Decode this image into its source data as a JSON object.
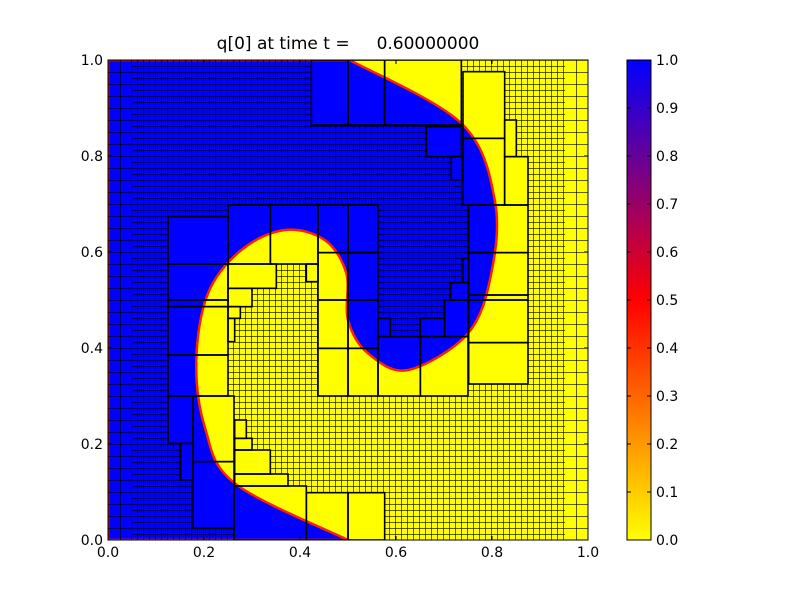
{
  "chart_data": {
    "type": "heatmap",
    "title": "q[0] at time t =     0.60000000",
    "xlabel": "",
    "ylabel": "",
    "xlim": [
      0.0,
      1.0
    ],
    "ylim": [
      0.0,
      1.0
    ],
    "x_ticks": [
      "0.0",
      "0.2",
      "0.4",
      "0.6",
      "0.8",
      "1.0"
    ],
    "y_ticks": [
      "0.0",
      "0.2",
      "0.4",
      "0.6",
      "0.8",
      "1.0"
    ],
    "colorbar": {
      "range": [
        0.0,
        1.0
      ],
      "ticks": [
        "0.0",
        "0.1",
        "0.2",
        "0.3",
        "0.4",
        "0.5",
        "0.6",
        "0.7",
        "0.8",
        "0.9",
        "1.0"
      ],
      "colors": {
        "0.0": "#ffff00",
        "0.5": "#ff0000",
        "1.0": "#0000ff"
      }
    },
    "field": "swirl of q=1 (blue) and q=0 (yellow) with thin red transition band",
    "grid_patches_shown": true,
    "grid_line_color": "#000000"
  }
}
